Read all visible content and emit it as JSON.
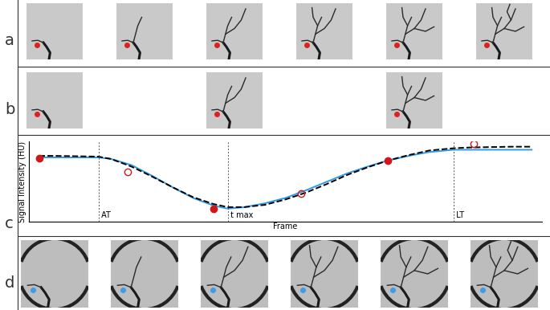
{
  "image_panels": [
    {
      "label": "a",
      "frames": [
        0,
        1,
        2,
        3,
        4,
        5
      ],
      "dot_color": "#e0201e"
    },
    {
      "label": "b",
      "frames": [
        0,
        2,
        4
      ],
      "dot_color": "#e0201e"
    },
    {
      "label": "d",
      "frames": [
        0,
        1,
        2,
        3,
        4,
        5
      ],
      "dot_color": "#3a9ee8"
    }
  ],
  "chart_panel": "c",
  "chart_data": {
    "type": "line",
    "x_label": "Frame",
    "y_label": "Signal Intensity (HU)",
    "xlim": [
      0,
      100
    ],
    "ylim": [
      0,
      105
    ],
    "tick_labels": false,
    "vlines": [
      {
        "x": 13.6,
        "label": "AT"
      },
      {
        "x": 38.75,
        "label": "t max"
      },
      {
        "x": 82.8,
        "label": "LT"
      }
    ],
    "series": [
      {
        "type": "line",
        "color": "#2f9be8",
        "line_style": "solid",
        "x": [
          2,
          5,
          10,
          13.6,
          16,
          20,
          24,
          28,
          32,
          36,
          38.75,
          42,
          46,
          50,
          54,
          58,
          62,
          66,
          70,
          74,
          78,
          82.8,
          86,
          90,
          94,
          98
        ],
        "values": [
          84,
          84,
          84,
          84,
          82,
          74,
          60,
          45,
          31,
          21,
          17,
          19,
          24,
          31,
          41,
          52,
          63,
          72,
          80,
          86,
          91,
          94,
          94,
          94,
          94,
          94
        ]
      },
      {
        "type": "line",
        "color": "#000000",
        "line_style": "dashed",
        "x": [
          2,
          5,
          10,
          13.6,
          16,
          20,
          24,
          28,
          32,
          36,
          38.75,
          42,
          46,
          50,
          54,
          58,
          62,
          66,
          70,
          74,
          78,
          82.8,
          86,
          90,
          94,
          98
        ],
        "values": [
          86,
          86,
          85.5,
          85,
          82,
          72,
          59,
          45,
          32,
          23,
          19,
          19,
          22,
          29,
          38,
          49,
          61,
          71,
          80,
          87,
          93,
          96,
          97,
          97.5,
          98,
          98
        ]
      },
      {
        "type": "scatter",
        "color": "#d01818",
        "marker": "filled",
        "x": [
          2,
          36,
          70
        ],
        "values": [
          83,
          17,
          80
        ]
      },
      {
        "type": "scatter",
        "color": "#d01818",
        "marker": "open",
        "x": [
          19.2,
          53,
          86.7
        ],
        "values": [
          65,
          36.6,
          101.8
        ]
      }
    ]
  }
}
